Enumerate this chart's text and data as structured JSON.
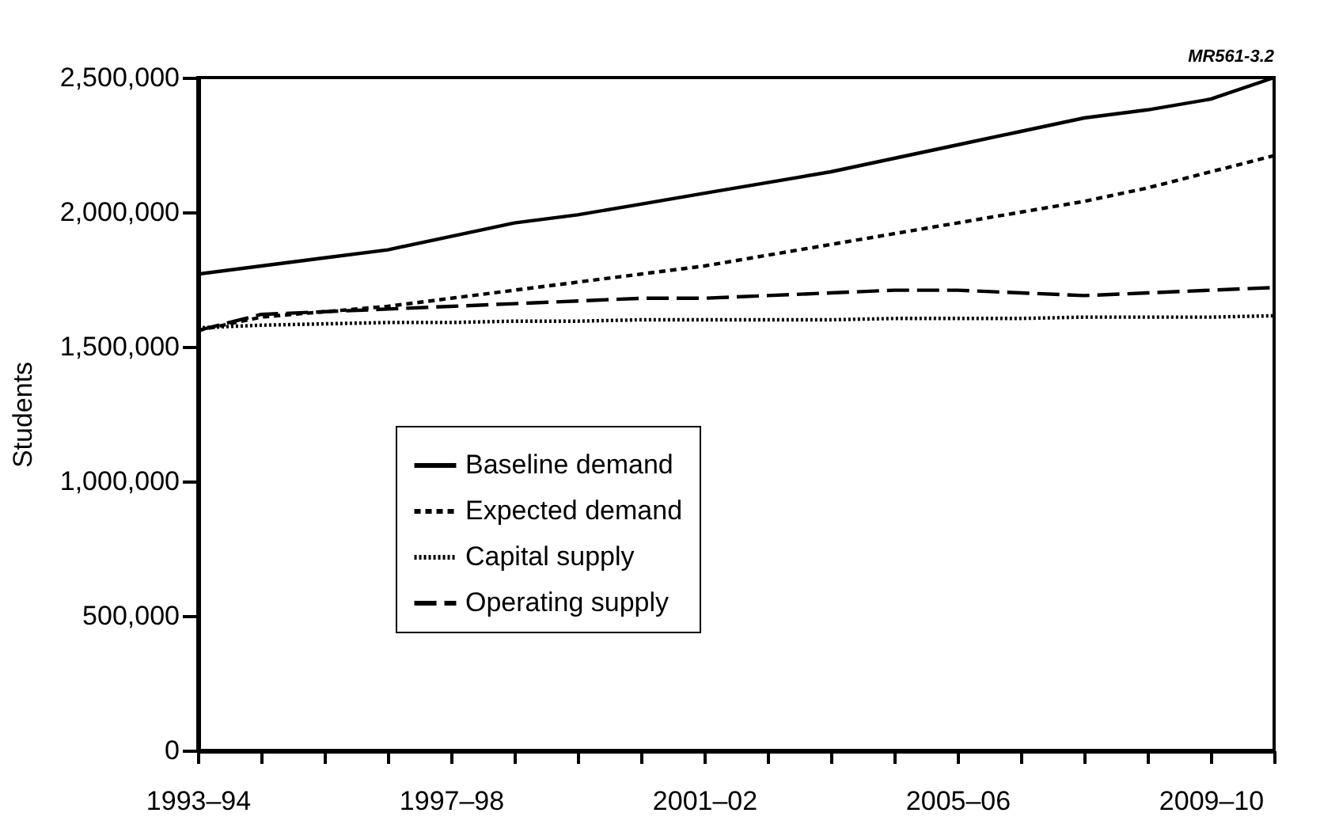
{
  "chart_data": {
    "type": "line",
    "ylabel": "Students",
    "categories": [
      "1993–94",
      null,
      null,
      null,
      "1997–98",
      null,
      null,
      null,
      "2001–02",
      null,
      null,
      null,
      "2005–06",
      null,
      null,
      null,
      "2009–10",
      null
    ],
    "ylim": [
      0,
      2500000
    ],
    "yticks": [
      {
        "value": 0,
        "label": "0"
      },
      {
        "value": 500000,
        "label": "500,000"
      },
      {
        "value": 1000000,
        "label": "1,000,000"
      },
      {
        "value": 1500000,
        "label": "1,500,000"
      },
      {
        "value": 2000000,
        "label": "2,000,000"
      },
      {
        "value": 2500000,
        "label": "2,500,000"
      }
    ],
    "series": [
      {
        "name": "Baseline demand",
        "color": "#000000",
        "line_style": "solid",
        "values": [
          1770000,
          1800000,
          1830000,
          1860000,
          1910000,
          1960000,
          1990000,
          2030000,
          2070000,
          2110000,
          2150000,
          2200000,
          2250000,
          2300000,
          2350000,
          2380000,
          2420000,
          2500000
        ]
      },
      {
        "name": "Expected demand",
        "color": "#000000",
        "line_style": "dashed",
        "values": [
          1560000,
          1610000,
          1630000,
          1650000,
          1680000,
          1710000,
          1740000,
          1770000,
          1800000,
          1840000,
          1880000,
          1920000,
          1960000,
          2000000,
          2040000,
          2090000,
          2150000,
          2210000
        ]
      },
      {
        "name": "Capital supply",
        "color": "#000000",
        "line_style": "dotted",
        "values": [
          1570000,
          1580000,
          1585000,
          1590000,
          1590000,
          1595000,
          1595000,
          1600000,
          1600000,
          1600000,
          1600000,
          1605000,
          1605000,
          1605000,
          1610000,
          1610000,
          1610000,
          1615000
        ]
      },
      {
        "name": "Operating supply",
        "color": "#000000",
        "line_style": "longdash",
        "values": [
          1560000,
          1620000,
          1630000,
          1640000,
          1650000,
          1660000,
          1670000,
          1680000,
          1680000,
          1690000,
          1700000,
          1710000,
          1710000,
          1700000,
          1690000,
          1700000,
          1710000,
          1720000
        ]
      }
    ],
    "legend": "bottom",
    "grid": false,
    "marker": "none",
    "annotations": [
      "MR561-3.2"
    ]
  }
}
